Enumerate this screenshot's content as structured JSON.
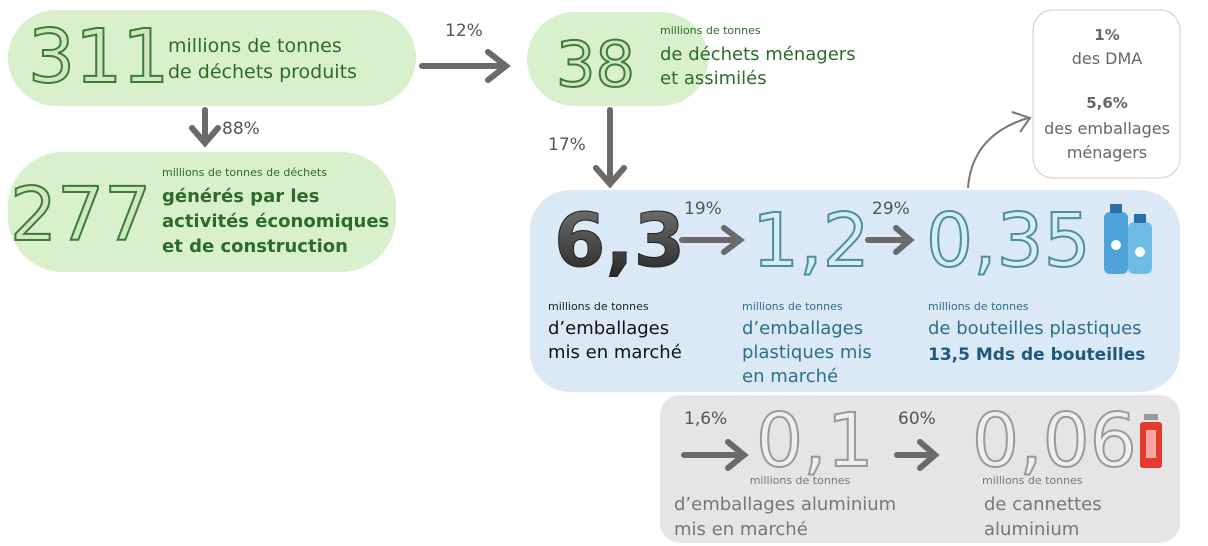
{
  "arrows": {
    "to_household": "12%",
    "to_economic": "88%",
    "to_packaging": "17%",
    "to_plastic": "19%",
    "to_bottles": "29%",
    "to_aluminium": "1,6%",
    "to_cans": "60%"
  },
  "nodes": {
    "total": {
      "value": "311",
      "lines": [
        "millions de tonnes",
        "de déchets produits"
      ]
    },
    "household": {
      "value": "38",
      "caption": "millions de tonnes",
      "lines": [
        "de déchets ménagers",
        "et assimilés"
      ]
    },
    "economic": {
      "value": "277",
      "caption": "millions de tonnes de déchets",
      "lines": [
        "générés par les",
        "activités économiques",
        "et de construction"
      ]
    },
    "packaging": {
      "value": "6,3",
      "caption": "millions de tonnes",
      "lines": [
        "d’emballages",
        "mis en marché"
      ]
    },
    "plastic": {
      "value": "1,2",
      "caption": "millions de tonnes",
      "lines": [
        "d’emballages",
        "plastiques mis",
        "en marché"
      ]
    },
    "bottles": {
      "value": "0,35",
      "caption": "millions de tonnes",
      "lines": [
        "de bouteilles plastiques"
      ],
      "highlight": "13,5 Mds de bouteilles"
    },
    "aluminium": {
      "value": "0,1",
      "caption": "millions de tonnes",
      "lines": [
        "d’emballages aluminium",
        "mis en marché"
      ]
    },
    "cans": {
      "value": "0,06",
      "caption": "millions de tonnes",
      "lines": [
        "de cannettes",
        "aluminium"
      ]
    },
    "note": {
      "share_dma": "1%",
      "dma_label": "des DMA",
      "share_packaging": "5,6%",
      "packaging_lines": [
        "des emballages",
        "ménagers"
      ]
    }
  }
}
